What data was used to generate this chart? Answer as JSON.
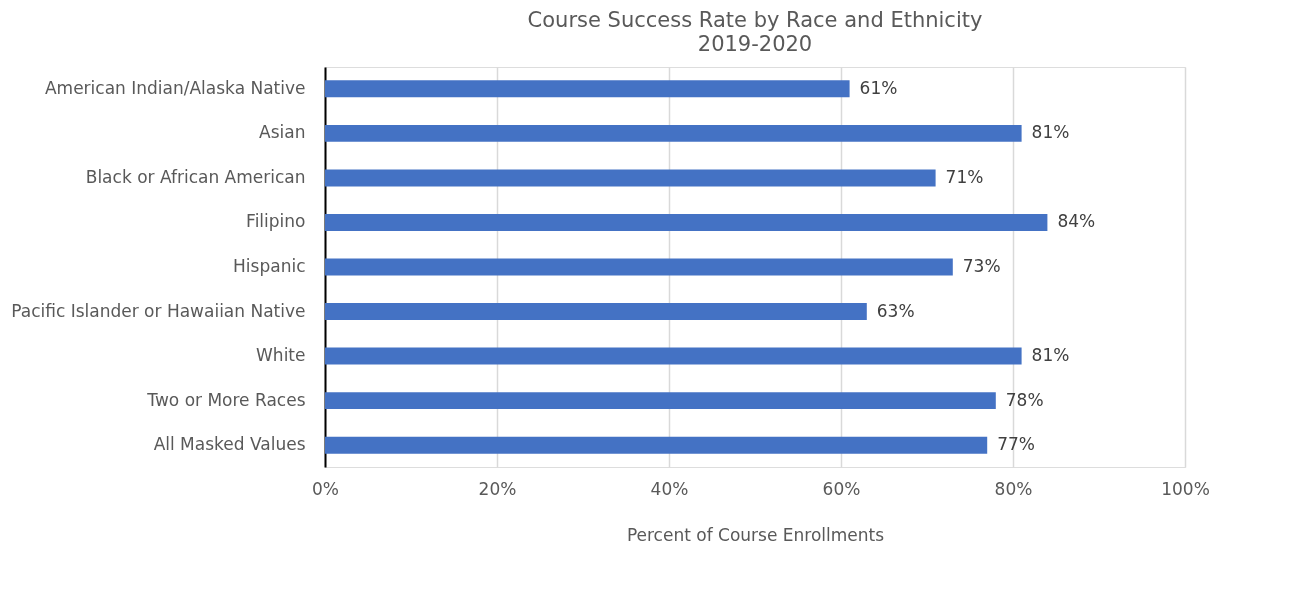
{
  "chart_data": {
    "type": "bar",
    "orientation": "horizontal",
    "title": "Course Success Rate by Race and Ethnicity",
    "subtitle": "2019-2020",
    "xlabel": "Percent of Course Enrollments",
    "categories": [
      "American Indian/Alaska Native",
      "Asian",
      "Black or African American",
      "Filipino",
      "Hispanic",
      "Pacific Islander or Hawaiian Native",
      "White",
      "Two or More Races",
      "All Masked Values"
    ],
    "values": [
      61,
      81,
      71,
      84,
      73,
      63,
      81,
      78,
      77
    ],
    "value_labels": [
      "61%",
      "81%",
      "71%",
      "84%",
      "73%",
      "63%",
      "81%",
      "78%",
      "77%"
    ],
    "color": "#4472c4",
    "xlim": [
      0,
      100
    ],
    "xticks": [
      {
        "value": 0,
        "label": "0%"
      },
      {
        "value": 20,
        "label": "20%"
      },
      {
        "value": 40,
        "label": "40%"
      },
      {
        "value": 60,
        "label": "60%"
      },
      {
        "value": 80,
        "label": "80%"
      },
      {
        "value": 100,
        "label": "100%"
      }
    ],
    "grid": "x"
  }
}
